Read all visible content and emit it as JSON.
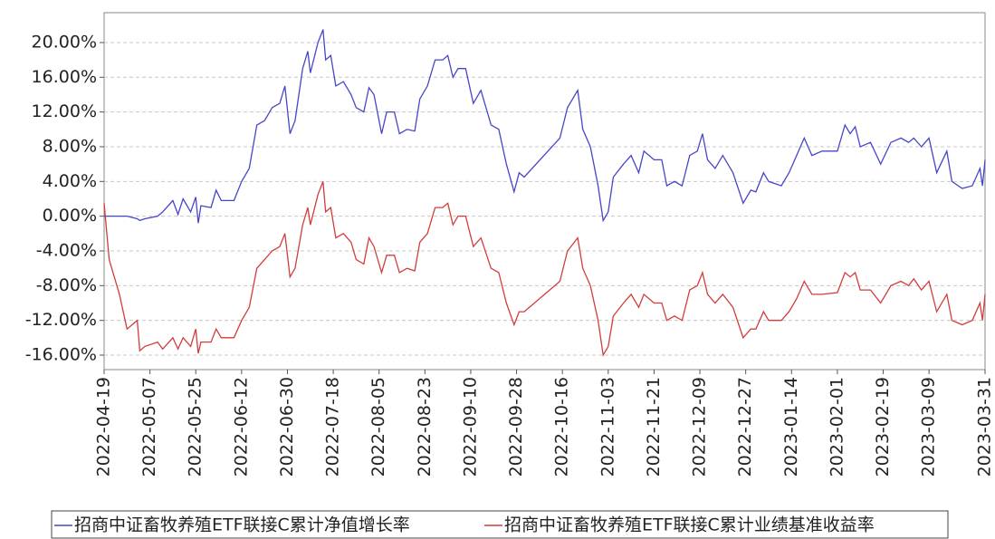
{
  "chart_data": {
    "type": "line",
    "x": [
      "2022-04-19",
      "2022-04-21",
      "2022-04-25",
      "2022-04-28",
      "2022-05-02",
      "2022-05-03",
      "2022-05-05",
      "2022-05-10",
      "2022-05-12",
      "2022-05-16",
      "2022-05-18",
      "2022-05-20",
      "2022-05-23",
      "2022-05-25",
      "2022-05-26",
      "2022-05-27",
      "2022-05-31",
      "2022-06-02",
      "2022-06-04",
      "2022-06-09",
      "2022-06-12",
      "2022-06-15",
      "2022-06-18",
      "2022-06-21",
      "2022-06-24",
      "2022-06-27",
      "2022-06-29",
      "2022-07-01",
      "2022-07-03",
      "2022-07-06",
      "2022-07-08",
      "2022-07-09",
      "2022-07-12",
      "2022-07-14",
      "2022-07-15",
      "2022-07-17",
      "2022-07-19",
      "2022-07-22",
      "2022-07-25",
      "2022-07-27",
      "2022-07-30",
      "2022-08-01",
      "2022-08-03",
      "2022-08-06",
      "2022-08-08",
      "2022-08-11",
      "2022-08-13",
      "2022-08-16",
      "2022-08-19",
      "2022-08-21",
      "2022-08-24",
      "2022-08-27",
      "2022-08-30",
      "2022-09-01",
      "2022-09-03",
      "2022-09-05",
      "2022-09-08",
      "2022-09-11",
      "2022-09-14",
      "2022-09-18",
      "2022-09-21",
      "2022-09-24",
      "2022-09-27",
      "2022-09-29",
      "2022-10-01",
      "2022-10-15",
      "2022-10-18",
      "2022-10-22",
      "2022-10-24",
      "2022-10-27",
      "2022-10-30",
      "2022-11-01",
      "2022-11-03",
      "2022-11-05",
      "2022-11-09",
      "2022-11-12",
      "2022-11-15",
      "2022-11-17",
      "2022-11-21",
      "2022-11-24",
      "2022-11-26",
      "2022-11-29",
      "2022-12-02",
      "2022-12-05",
      "2022-12-08",
      "2022-12-10",
      "2022-12-12",
      "2022-12-15",
      "2022-12-18",
      "2022-12-22",
      "2022-12-26",
      "2022-12-29",
      "2022-12-31",
      "2023-01-03",
      "2023-01-05",
      "2023-01-10",
      "2023-01-13",
      "2023-01-16",
      "2023-01-19",
      "2023-01-22",
      "2023-01-26",
      "2023-02-01",
      "2023-02-04",
      "2023-02-06",
      "2023-02-08",
      "2023-02-10",
      "2023-02-14",
      "2023-02-18",
      "2023-02-22",
      "2023-02-26",
      "2023-03-01",
      "2023-03-03",
      "2023-03-06",
      "2023-03-09",
      "2023-03-12",
      "2023-03-16",
      "2023-03-18",
      "2023-03-22",
      "2023-03-26",
      "2023-03-29",
      "2023-03-30",
      "2023-03-31"
    ],
    "series": [
      {
        "name": "招商中证畜牧养殖ETF联接C累计净值增长率",
        "color": "#4646c8",
        "values": [
          0,
          0,
          0,
          0,
          -0.3,
          -0.5,
          -0.3,
          0,
          0.5,
          1.8,
          0.2,
          2,
          0.5,
          2.2,
          -0.8,
          1.2,
          1,
          3,
          1.8,
          1.8,
          4,
          5.5,
          10.5,
          11,
          12.5,
          13,
          15,
          9.5,
          11,
          17,
          19,
          16.5,
          20,
          21.5,
          18,
          18.5,
          15,
          15.5,
          14,
          12.5,
          12,
          14.8,
          14,
          9.5,
          12,
          12,
          9.5,
          10,
          9.8,
          13.5,
          15,
          18,
          18,
          18.5,
          16,
          17,
          17,
          13,
          14.5,
          10.5,
          10,
          6,
          2.8,
          5,
          4.5,
          9,
          12.5,
          14.5,
          10,
          8,
          3.5,
          -0.5,
          0.5,
          4.5,
          6,
          7,
          5,
          7.5,
          6.5,
          6.5,
          3.5,
          4,
          3.5,
          7,
          7.5,
          9.5,
          6.5,
          5.5,
          7,
          5,
          1.5,
          3,
          2.8,
          5,
          4,
          3.5,
          5,
          7,
          9,
          7,
          7.5,
          7.5,
          10.5,
          9.5,
          10.3,
          8,
          8.5,
          6,
          8.5,
          9,
          8.5,
          9,
          8,
          9,
          5,
          7.5,
          4,
          3.2,
          3.5,
          5.5,
          3.5,
          6.5
        ]
      },
      {
        "name": "招商中证畜牧养殖ETF联接C累计业绩基准收益率",
        "color": "#d23c3c",
        "values": [
          1.5,
          -5,
          -9,
          -13,
          -12,
          -15.5,
          -15,
          -14.5,
          -15.3,
          -14,
          -15.3,
          -14,
          -15,
          -13,
          -15.8,
          -14.5,
          -14.5,
          -13,
          -14,
          -14,
          -12,
          -10.5,
          -6,
          -5,
          -4,
          -3.5,
          -2,
          -7,
          -6,
          -1,
          1,
          -1,
          2.5,
          4,
          0.5,
          1,
          -2.5,
          -2,
          -3,
          -5,
          -5.5,
          -2.5,
          -3.5,
          -6.5,
          -4.5,
          -4.5,
          -6.5,
          -6,
          -6.3,
          -3,
          -2,
          1,
          1,
          1.5,
          -1,
          0,
          0,
          -3.5,
          -2.5,
          -6,
          -6.5,
          -10,
          -12.5,
          -11,
          -11,
          -7.5,
          -4,
          -2.5,
          -6,
          -8,
          -12,
          -16,
          -15,
          -11.5,
          -10,
          -9,
          -10.5,
          -9,
          -10,
          -10,
          -12,
          -11.5,
          -12,
          -8.5,
          -8,
          -6.5,
          -9,
          -10,
          -9,
          -10.5,
          -14,
          -13,
          -13,
          -11,
          -12,
          -12,
          -11,
          -9.5,
          -7.5,
          -9,
          -9,
          -8.8,
          -6.5,
          -7,
          -6.5,
          -8.5,
          -8.5,
          -10,
          -8,
          -7.5,
          -8,
          -7.2,
          -8.5,
          -7.5,
          -11,
          -9,
          -12,
          -12.5,
          -12,
          -10,
          -12,
          -9
        ]
      }
    ],
    "xlim": [
      "2022-04-19",
      "2023-03-31"
    ],
    "xticks": [
      "2022-04-19",
      "2022-05-07",
      "2022-05-25",
      "2022-06-12",
      "2022-06-30",
      "2022-07-18",
      "2022-08-05",
      "2022-08-23",
      "2022-09-10",
      "2022-09-28",
      "2022-10-16",
      "2022-11-03",
      "2022-11-21",
      "2022-12-09",
      "2022-12-27",
      "2023-01-14",
      "2023-02-01",
      "2023-02-19",
      "2023-03-09",
      "2023-03-31"
    ],
    "ylim": [
      -17.67,
      23.44
    ],
    "yticks": [
      {
        "value": -16,
        "label": "-16.00%"
      },
      {
        "value": -12,
        "label": "-12.00%"
      },
      {
        "value": -8,
        "label": "-8.00%"
      },
      {
        "value": -4,
        "label": "-4.00%"
      },
      {
        "value": 0,
        "label": "0.00%"
      },
      {
        "value": 4,
        "label": "4.00%"
      },
      {
        "value": 8,
        "label": "8.00%"
      },
      {
        "value": 12,
        "label": "12.00%"
      },
      {
        "value": 16,
        "label": "16.00%"
      },
      {
        "value": 20,
        "label": "20.00%"
      }
    ],
    "grid": true
  }
}
